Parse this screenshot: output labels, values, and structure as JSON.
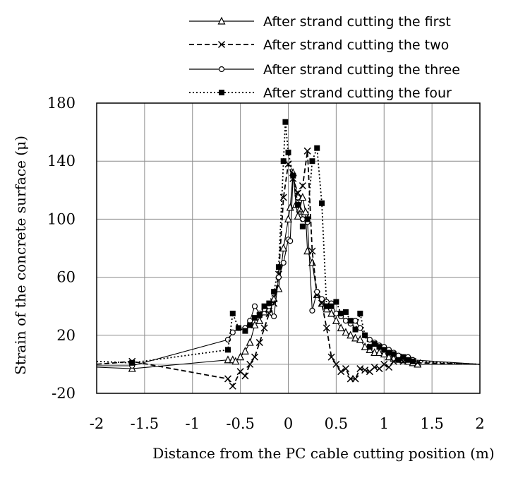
{
  "chart_data": {
    "type": "line",
    "title": "",
    "xlabel": "Distance from the PC cable cutting position (m)",
    "ylabel": "Strain of the concrete surface (μ)",
    "xlim": [
      -2,
      2
    ],
    "ylim": [
      -20,
      180
    ],
    "xticks": [
      "-2",
      "-1.5",
      "-1",
      "-0.5",
      "0",
      "0.5",
      "1",
      "1.5",
      "2"
    ],
    "yticks": [
      "-20",
      "20",
      "60",
      "100",
      "140",
      "180"
    ],
    "grid": true,
    "legend_position": "top-right",
    "series": [
      {
        "name": "After strand cutting the first",
        "marker": "triangle",
        "dash": "solid",
        "points": [
          [
            -2,
            -2
          ],
          [
            -1.63,
            -3
          ],
          [
            -0.63,
            3
          ],
          [
            -0.58,
            3
          ],
          [
            -0.55,
            2
          ],
          [
            -0.5,
            5
          ],
          [
            -0.45,
            9
          ],
          [
            -0.4,
            15
          ],
          [
            -0.35,
            27
          ],
          [
            -0.3,
            30
          ],
          [
            -0.25,
            36
          ],
          [
            -0.2,
            38
          ],
          [
            -0.15,
            45
          ],
          [
            -0.1,
            52
          ],
          [
            -0.05,
            80
          ],
          [
            0,
            100
          ],
          [
            0.02,
            108
          ],
          [
            0.05,
            132
          ],
          [
            0.08,
            110
          ],
          [
            0.1,
            102
          ],
          [
            0.12,
            107
          ],
          [
            0.15,
            115
          ],
          [
            0.18,
            105
          ],
          [
            0.2,
            78
          ],
          [
            0.25,
            70
          ],
          [
            0.3,
            48
          ],
          [
            0.35,
            42
          ],
          [
            0.4,
            38
          ],
          [
            0.45,
            35
          ],
          [
            0.5,
            30
          ],
          [
            0.55,
            25
          ],
          [
            0.6,
            22
          ],
          [
            0.65,
            20
          ],
          [
            0.7,
            18
          ],
          [
            0.75,
            17
          ],
          [
            0.8,
            12
          ],
          [
            0.85,
            10
          ],
          [
            0.9,
            8
          ],
          [
            0.95,
            8
          ],
          [
            1,
            7
          ],
          [
            1.05,
            5
          ],
          [
            1.1,
            4
          ],
          [
            1.15,
            4
          ],
          [
            1.2,
            3
          ],
          [
            1.25,
            2
          ],
          [
            1.3,
            1
          ],
          [
            1.35,
            0
          ],
          [
            2,
            0
          ]
        ]
      },
      {
        "name": "After strand cutting the two",
        "marker": "x",
        "dash": "dashed",
        "points": [
          [
            -2,
            0
          ],
          [
            -1.63,
            2
          ],
          [
            -0.63,
            -10
          ],
          [
            -0.58,
            -15
          ],
          [
            -0.5,
            -5
          ],
          [
            -0.45,
            -8
          ],
          [
            -0.4,
            0
          ],
          [
            -0.35,
            5
          ],
          [
            -0.3,
            15
          ],
          [
            -0.25,
            25
          ],
          [
            -0.2,
            35
          ],
          [
            -0.15,
            42
          ],
          [
            -0.1,
            62
          ],
          [
            -0.05,
            115
          ],
          [
            0,
            138
          ],
          [
            0.05,
            128
          ],
          [
            0.1,
            118
          ],
          [
            0.15,
            123
          ],
          [
            0.2,
            147
          ],
          [
            0.25,
            78
          ],
          [
            0.3,
            48
          ],
          [
            0.35,
            42
          ],
          [
            0.4,
            25
          ],
          [
            0.45,
            5
          ],
          [
            0.5,
            0
          ],
          [
            0.55,
            -5
          ],
          [
            0.6,
            -3
          ],
          [
            0.65,
            -10
          ],
          [
            0.7,
            -10
          ],
          [
            0.75,
            -3
          ],
          [
            0.8,
            -4
          ],
          [
            0.85,
            -5
          ],
          [
            0.9,
            -2
          ],
          [
            0.95,
            -3
          ],
          [
            1,
            0
          ],
          [
            1.05,
            -2
          ],
          [
            1.1,
            2
          ],
          [
            1.15,
            5
          ],
          [
            1.2,
            2
          ],
          [
            1.25,
            3
          ],
          [
            1.3,
            2
          ],
          [
            1.35,
            1
          ],
          [
            2,
            0
          ]
        ]
      },
      {
        "name": "After strand cutting the three",
        "marker": "circle",
        "dash": "solid",
        "points": [
          [
            -2,
            -1
          ],
          [
            -1.63,
            -1
          ],
          [
            -0.63,
            17
          ],
          [
            -0.58,
            22
          ],
          [
            -0.52,
            25
          ],
          [
            -0.45,
            25
          ],
          [
            -0.4,
            30
          ],
          [
            -0.35,
            40
          ],
          [
            -0.3,
            35
          ],
          [
            -0.25,
            38
          ],
          [
            -0.2,
            40
          ],
          [
            -0.15,
            33
          ],
          [
            -0.1,
            60
          ],
          [
            -0.05,
            70
          ],
          [
            0,
            86
          ],
          [
            0.02,
            85
          ],
          [
            0.05,
            130
          ],
          [
            0.1,
            115
          ],
          [
            0.15,
            100
          ],
          [
            0.2,
            98
          ],
          [
            0.25,
            37
          ],
          [
            0.3,
            50
          ],
          [
            0.35,
            45
          ],
          [
            0.4,
            43
          ],
          [
            0.45,
            42
          ],
          [
            0.5,
            35
          ],
          [
            0.55,
            33
          ],
          [
            0.6,
            30
          ],
          [
            0.65,
            28
          ],
          [
            0.7,
            30
          ],
          [
            0.75,
            25
          ],
          [
            0.8,
            20
          ],
          [
            0.85,
            17
          ],
          [
            0.9,
            15
          ],
          [
            0.95,
            13
          ],
          [
            1,
            12
          ],
          [
            1.05,
            10
          ],
          [
            1.1,
            8
          ],
          [
            1.15,
            6
          ],
          [
            1.2,
            5
          ],
          [
            1.25,
            5
          ],
          [
            1.3,
            3
          ],
          [
            2,
            0
          ]
        ]
      },
      {
        "name": "After strand cutting the four",
        "marker": "square",
        "dash": "dotted",
        "points": [
          [
            -2,
            2
          ],
          [
            -1.63,
            1
          ],
          [
            -0.63,
            10
          ],
          [
            -0.58,
            35
          ],
          [
            -0.52,
            25
          ],
          [
            -0.45,
            23
          ],
          [
            -0.4,
            27
          ],
          [
            -0.35,
            32
          ],
          [
            -0.3,
            34
          ],
          [
            -0.25,
            40
          ],
          [
            -0.2,
            42
          ],
          [
            -0.15,
            50
          ],
          [
            -0.1,
            67
          ],
          [
            -0.05,
            140
          ],
          [
            -0.03,
            167
          ],
          [
            0,
            146
          ],
          [
            0.05,
            130
          ],
          [
            0.1,
            110
          ],
          [
            0.15,
            95
          ],
          [
            0.2,
            100
          ],
          [
            0.25,
            140
          ],
          [
            0.3,
            149
          ],
          [
            0.35,
            111
          ],
          [
            0.4,
            40
          ],
          [
            0.45,
            40
          ],
          [
            0.5,
            43
          ],
          [
            0.55,
            35
          ],
          [
            0.6,
            36
          ],
          [
            0.65,
            30
          ],
          [
            0.7,
            24
          ],
          [
            0.75,
            35
          ],
          [
            0.8,
            20
          ],
          [
            0.85,
            12
          ],
          [
            0.9,
            14
          ],
          [
            0.95,
            12
          ],
          [
            1,
            10
          ],
          [
            1.05,
            8
          ],
          [
            1.1,
            7
          ],
          [
            1.15,
            3
          ],
          [
            1.2,
            5
          ],
          [
            1.25,
            3
          ],
          [
            1.3,
            2
          ],
          [
            2,
            0
          ]
        ]
      }
    ]
  }
}
